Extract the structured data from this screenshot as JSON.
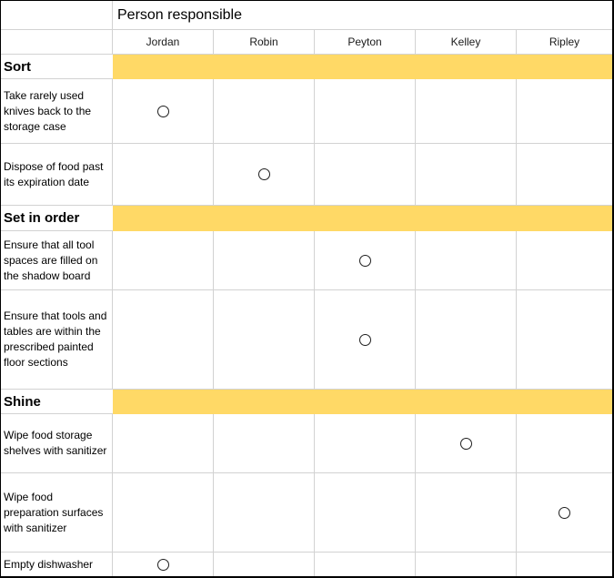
{
  "title": "Person responsible",
  "people": [
    "Jordan",
    "Robin",
    "Peyton",
    "Kelley",
    "Ripley"
  ],
  "sections": [
    {
      "label": "Sort",
      "tasks": [
        {
          "text": "Take rarely used knives back to the storage case",
          "assigned": "Jordan"
        },
        {
          "text": "Dispose of food past its expiration date",
          "assigned": "Robin"
        }
      ]
    },
    {
      "label": "Set in order",
      "tasks": [
        {
          "text": "Ensure that all tool spaces are filled on the shadow board",
          "assigned": "Peyton"
        },
        {
          "text": "Ensure that tools and tables are within the prescribed painted floor sections",
          "assigned": "Peyton"
        }
      ]
    },
    {
      "label": "Shine",
      "tasks": [
        {
          "text": "Wipe food storage shelves with sanitizer",
          "assigned": "Kelley"
        },
        {
          "text": "Wipe food preparation surfaces with sanitizer",
          "assigned": "Ripley"
        },
        {
          "text": "Empty dishwasher",
          "assigned": "Jordan"
        }
      ]
    }
  ],
  "marker": {
    "glyph": "open-circle"
  },
  "colors": {
    "section_fill": "#FFD966",
    "gridline": "#D2D2D2",
    "outer_border": "#000000",
    "text": "#000000"
  }
}
